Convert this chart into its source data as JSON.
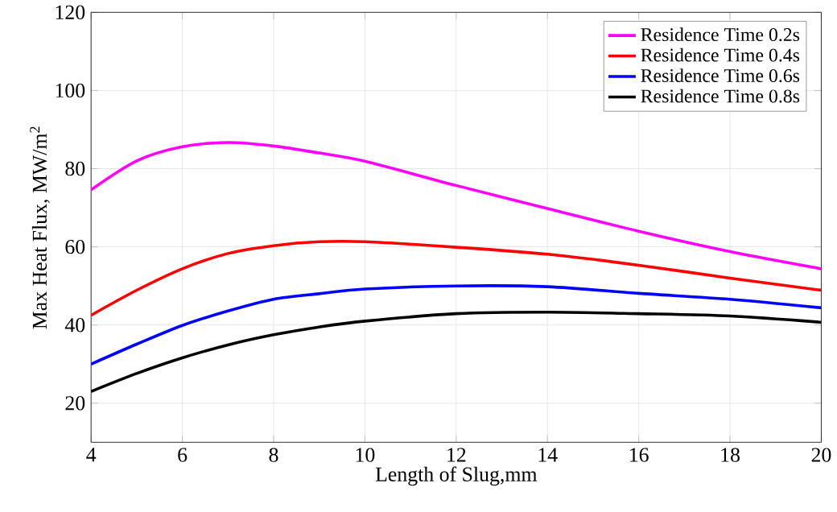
{
  "chart_data": {
    "type": "line",
    "xlabel": "Length of Slug,mm",
    "ylabel": "Max Heat Flux, MW/m$^{2}$",
    "x": [
      4,
      5,
      6,
      7,
      8,
      9,
      10,
      12,
      14,
      16,
      18,
      20
    ],
    "series": [
      {
        "name": "Residence Time 0.2s",
        "color": "#ff00ff",
        "values": [
          74.6,
          82,
          85.6,
          86.7,
          85.8,
          84,
          81.9,
          75.7,
          69.8,
          64,
          58.8,
          54.4
        ]
      },
      {
        "name": "Residence Time 0.4s",
        "color": "#ff0000",
        "values": [
          42.5,
          48.9,
          54.4,
          58.3,
          60.3,
          61.3,
          61.3,
          59.9,
          58.1,
          55.3,
          52,
          48.9
        ]
      },
      {
        "name": "Residence Time 0.6s",
        "color": "#0000ff",
        "values": [
          30,
          35.1,
          39.9,
          43.6,
          46.6,
          48,
          49.2,
          50,
          49.8,
          48.1,
          46.6,
          44.4
        ]
      },
      {
        "name": "Residence Time 0.8s",
        "color": "#000000",
        "values": [
          23,
          27.6,
          31.6,
          34.9,
          37.5,
          39.5,
          41,
          42.9,
          43.3,
          42.9,
          42.3,
          40.7
        ]
      }
    ],
    "xlim": [
      4,
      20
    ],
    "xticks": [
      4,
      6,
      8,
      10,
      12,
      14,
      16,
      18,
      20
    ],
    "ylim": [
      10,
      120
    ],
    "yticks": [
      20,
      40,
      60,
      80,
      100,
      120
    ],
    "grid": true,
    "legend": "top right",
    "line_style": "solid",
    "marker": "none"
  }
}
